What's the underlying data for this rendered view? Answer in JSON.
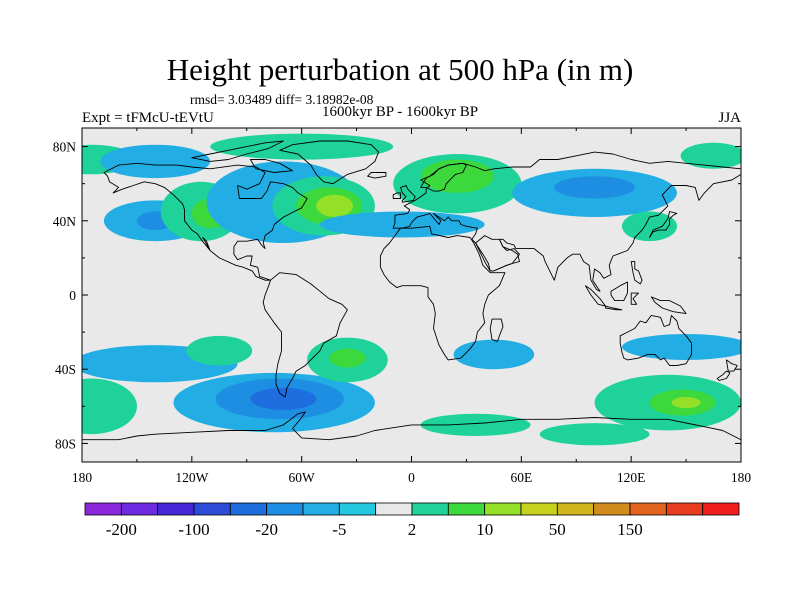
{
  "plot": {
    "title": "Height perturbation at 500 hPa (in m)",
    "stats": "rmsd= 3.03489 diff= 3.18982e-08",
    "left_label": "Expt = tFMcU-tEVtU",
    "center_label": "1600kyr BP - 1600kyr BP",
    "right_label": "JJA",
    "lat_ticks": [
      "80N",
      "40N",
      "0",
      "40S",
      "80S"
    ],
    "lon_ticks": [
      "180",
      "120W",
      "60W",
      "0",
      "60E",
      "120E",
      "180"
    ]
  },
  "colors": {
    "ocean": "#e9e9e9",
    "coast": "#000000"
  },
  "colorbar": {
    "colors": [
      "#8c28dc",
      "#6e2ae0",
      "#4628d8",
      "#2c4cd8",
      "#1e6ee0",
      "#1e8ee2",
      "#22aee4",
      "#22c8e0",
      "#e8e8e8",
      "#1ed29a",
      "#3cd83c",
      "#94e028",
      "#c8d21e",
      "#d2b41e",
      "#d28c1e",
      "#e0641e",
      "#e83c1e",
      "#f01e1e"
    ],
    "labels": [
      {
        "index": 1,
        "text": "-200"
      },
      {
        "index": 3,
        "text": "-100"
      },
      {
        "index": 5,
        "text": "-20"
      },
      {
        "index": 7,
        "text": "-5"
      },
      {
        "index": 9,
        "text": "2"
      },
      {
        "index": 11,
        "text": "10"
      },
      {
        "index": 13,
        "text": "50"
      },
      {
        "index": 15,
        "text": "150"
      }
    ]
  },
  "anomalies": [
    {
      "name": "anomaly-n-pacific",
      "lon": -175,
      "lat": 73,
      "rx": 25,
      "ry": 8,
      "color": "#1ed29a"
    },
    {
      "name": "anomaly-alaska-arctic",
      "lon": -140,
      "lat": 72,
      "rx": 30,
      "ry": 9,
      "color": "#22aee4"
    },
    {
      "name": "anomaly-pacific-40n-outer",
      "lon": -140,
      "lat": 40,
      "rx": 28,
      "ry": 11,
      "color": "#22aee4"
    },
    {
      "name": "anomaly-pacific-40n-inner",
      "lon": -140,
      "lat": 40,
      "rx": 10,
      "ry": 5,
      "color": "#1e8ee2"
    },
    {
      "name": "anomaly-n-america-west",
      "lon": -115,
      "lat": 45,
      "rx": 22,
      "ry": 16,
      "color": "#1ed29a"
    },
    {
      "name": "anomaly-n-america-west-core",
      "lon": -110,
      "lat": 44,
      "rx": 10,
      "ry": 8,
      "color": "#3cd83c"
    },
    {
      "name": "anomaly-arctic-canada",
      "lon": -60,
      "lat": 80,
      "rx": 50,
      "ry": 7,
      "color": "#1ed29a"
    },
    {
      "name": "anomaly-n-america-east-ring",
      "lon": -70,
      "lat": 50,
      "rx": 42,
      "ry": 22,
      "color": "#22aee4"
    },
    {
      "name": "anomaly-atlantic-outer",
      "lon": -48,
      "lat": 48,
      "rx": 28,
      "ry": 16,
      "color": "#1ed29a"
    },
    {
      "name": "anomaly-atlantic-mid",
      "lon": -45,
      "lat": 48,
      "rx": 18,
      "ry": 10,
      "color": "#3cd83c"
    },
    {
      "name": "anomaly-atlantic-core",
      "lon": -42,
      "lat": 48,
      "rx": 10,
      "ry": 6,
      "color": "#94e028"
    },
    {
      "name": "anomaly-n-atlantic-band",
      "lon": -5,
      "lat": 38,
      "rx": 45,
      "ry": 7,
      "color": "#22aee4"
    },
    {
      "name": "anomaly-europe-arctic",
      "lon": 25,
      "lat": 60,
      "rx": 35,
      "ry": 16,
      "color": "#1ed29a"
    },
    {
      "name": "anomaly-europe-arctic-core",
      "lon": 25,
      "lat": 64,
      "rx": 20,
      "ry": 9,
      "color": "#3cd83c"
    },
    {
      "name": "anomaly-asia-band",
      "lon": 100,
      "lat": 55,
      "rx": 45,
      "ry": 13,
      "color": "#22aee4"
    },
    {
      "name": "anomaly-asia-band-core",
      "lon": 100,
      "lat": 58,
      "rx": 22,
      "ry": 6,
      "color": "#1e8ee2"
    },
    {
      "name": "anomaly-east-asia",
      "lon": 130,
      "lat": 37,
      "rx": 15,
      "ry": 8,
      "color": "#1ed29a"
    },
    {
      "name": "anomaly-east-arctic",
      "lon": 165,
      "lat": 75,
      "rx": 18,
      "ry": 7,
      "color": "#1ed29a"
    },
    {
      "name": "anomaly-south-pacific-band",
      "lon": -140,
      "lat": -37,
      "rx": 45,
      "ry": 10,
      "color": "#22aee4"
    },
    {
      "name": "anomaly-south-pacific-mid",
      "lon": -105,
      "lat": -30,
      "rx": 18,
      "ry": 8,
      "color": "#1ed29a"
    },
    {
      "name": "anomaly-southern-ocean-west",
      "lon": -175,
      "lat": -60,
      "rx": 25,
      "ry": 15,
      "color": "#1ed29a"
    },
    {
      "name": "anomaly-drake-outer",
      "lon": -75,
      "lat": -58,
      "rx": 55,
      "ry": 16,
      "color": "#22aee4"
    },
    {
      "name": "anomaly-drake-mid",
      "lon": -72,
      "lat": -56,
      "rx": 35,
      "ry": 11,
      "color": "#1e8ee2"
    },
    {
      "name": "anomaly-drake-core",
      "lon": -70,
      "lat": -56,
      "rx": 18,
      "ry": 6,
      "color": "#1e6ee0"
    },
    {
      "name": "anomaly-s-atlantic",
      "lon": -35,
      "lat": -35,
      "rx": 22,
      "ry": 12,
      "color": "#1ed29a"
    },
    {
      "name": "anomaly-s-atlantic-core",
      "lon": -35,
      "lat": -34,
      "rx": 10,
      "ry": 5,
      "color": "#3cd83c"
    },
    {
      "name": "anomaly-s-indian-west",
      "lon": 45,
      "lat": -32,
      "rx": 22,
      "ry": 8,
      "color": "#22aee4"
    },
    {
      "name": "anomaly-southern-ocean-center",
      "lon": 35,
      "lat": -70,
      "rx": 30,
      "ry": 6,
      "color": "#1ed29a"
    },
    {
      "name": "anomaly-s-indian-east",
      "lon": 150,
      "lat": -28,
      "rx": 35,
      "ry": 7,
      "color": "#22aee4"
    },
    {
      "name": "anomaly-southern-ocean-east",
      "lon": 140,
      "lat": -58,
      "rx": 40,
      "ry": 15,
      "color": "#1ed29a"
    },
    {
      "name": "anomaly-southern-ocean-east-core",
      "lon": 148,
      "lat": -58,
      "rx": 18,
      "ry": 7,
      "color": "#3cd83c"
    },
    {
      "name": "anomaly-southern-ocean-east-peak",
      "lon": 150,
      "lat": -58,
      "rx": 8,
      "ry": 3,
      "color": "#94e028"
    },
    {
      "name": "anomaly-antarctic-band",
      "lon": 100,
      "lat": -75,
      "rx": 30,
      "ry": 6,
      "color": "#1ed29a"
    }
  ]
}
